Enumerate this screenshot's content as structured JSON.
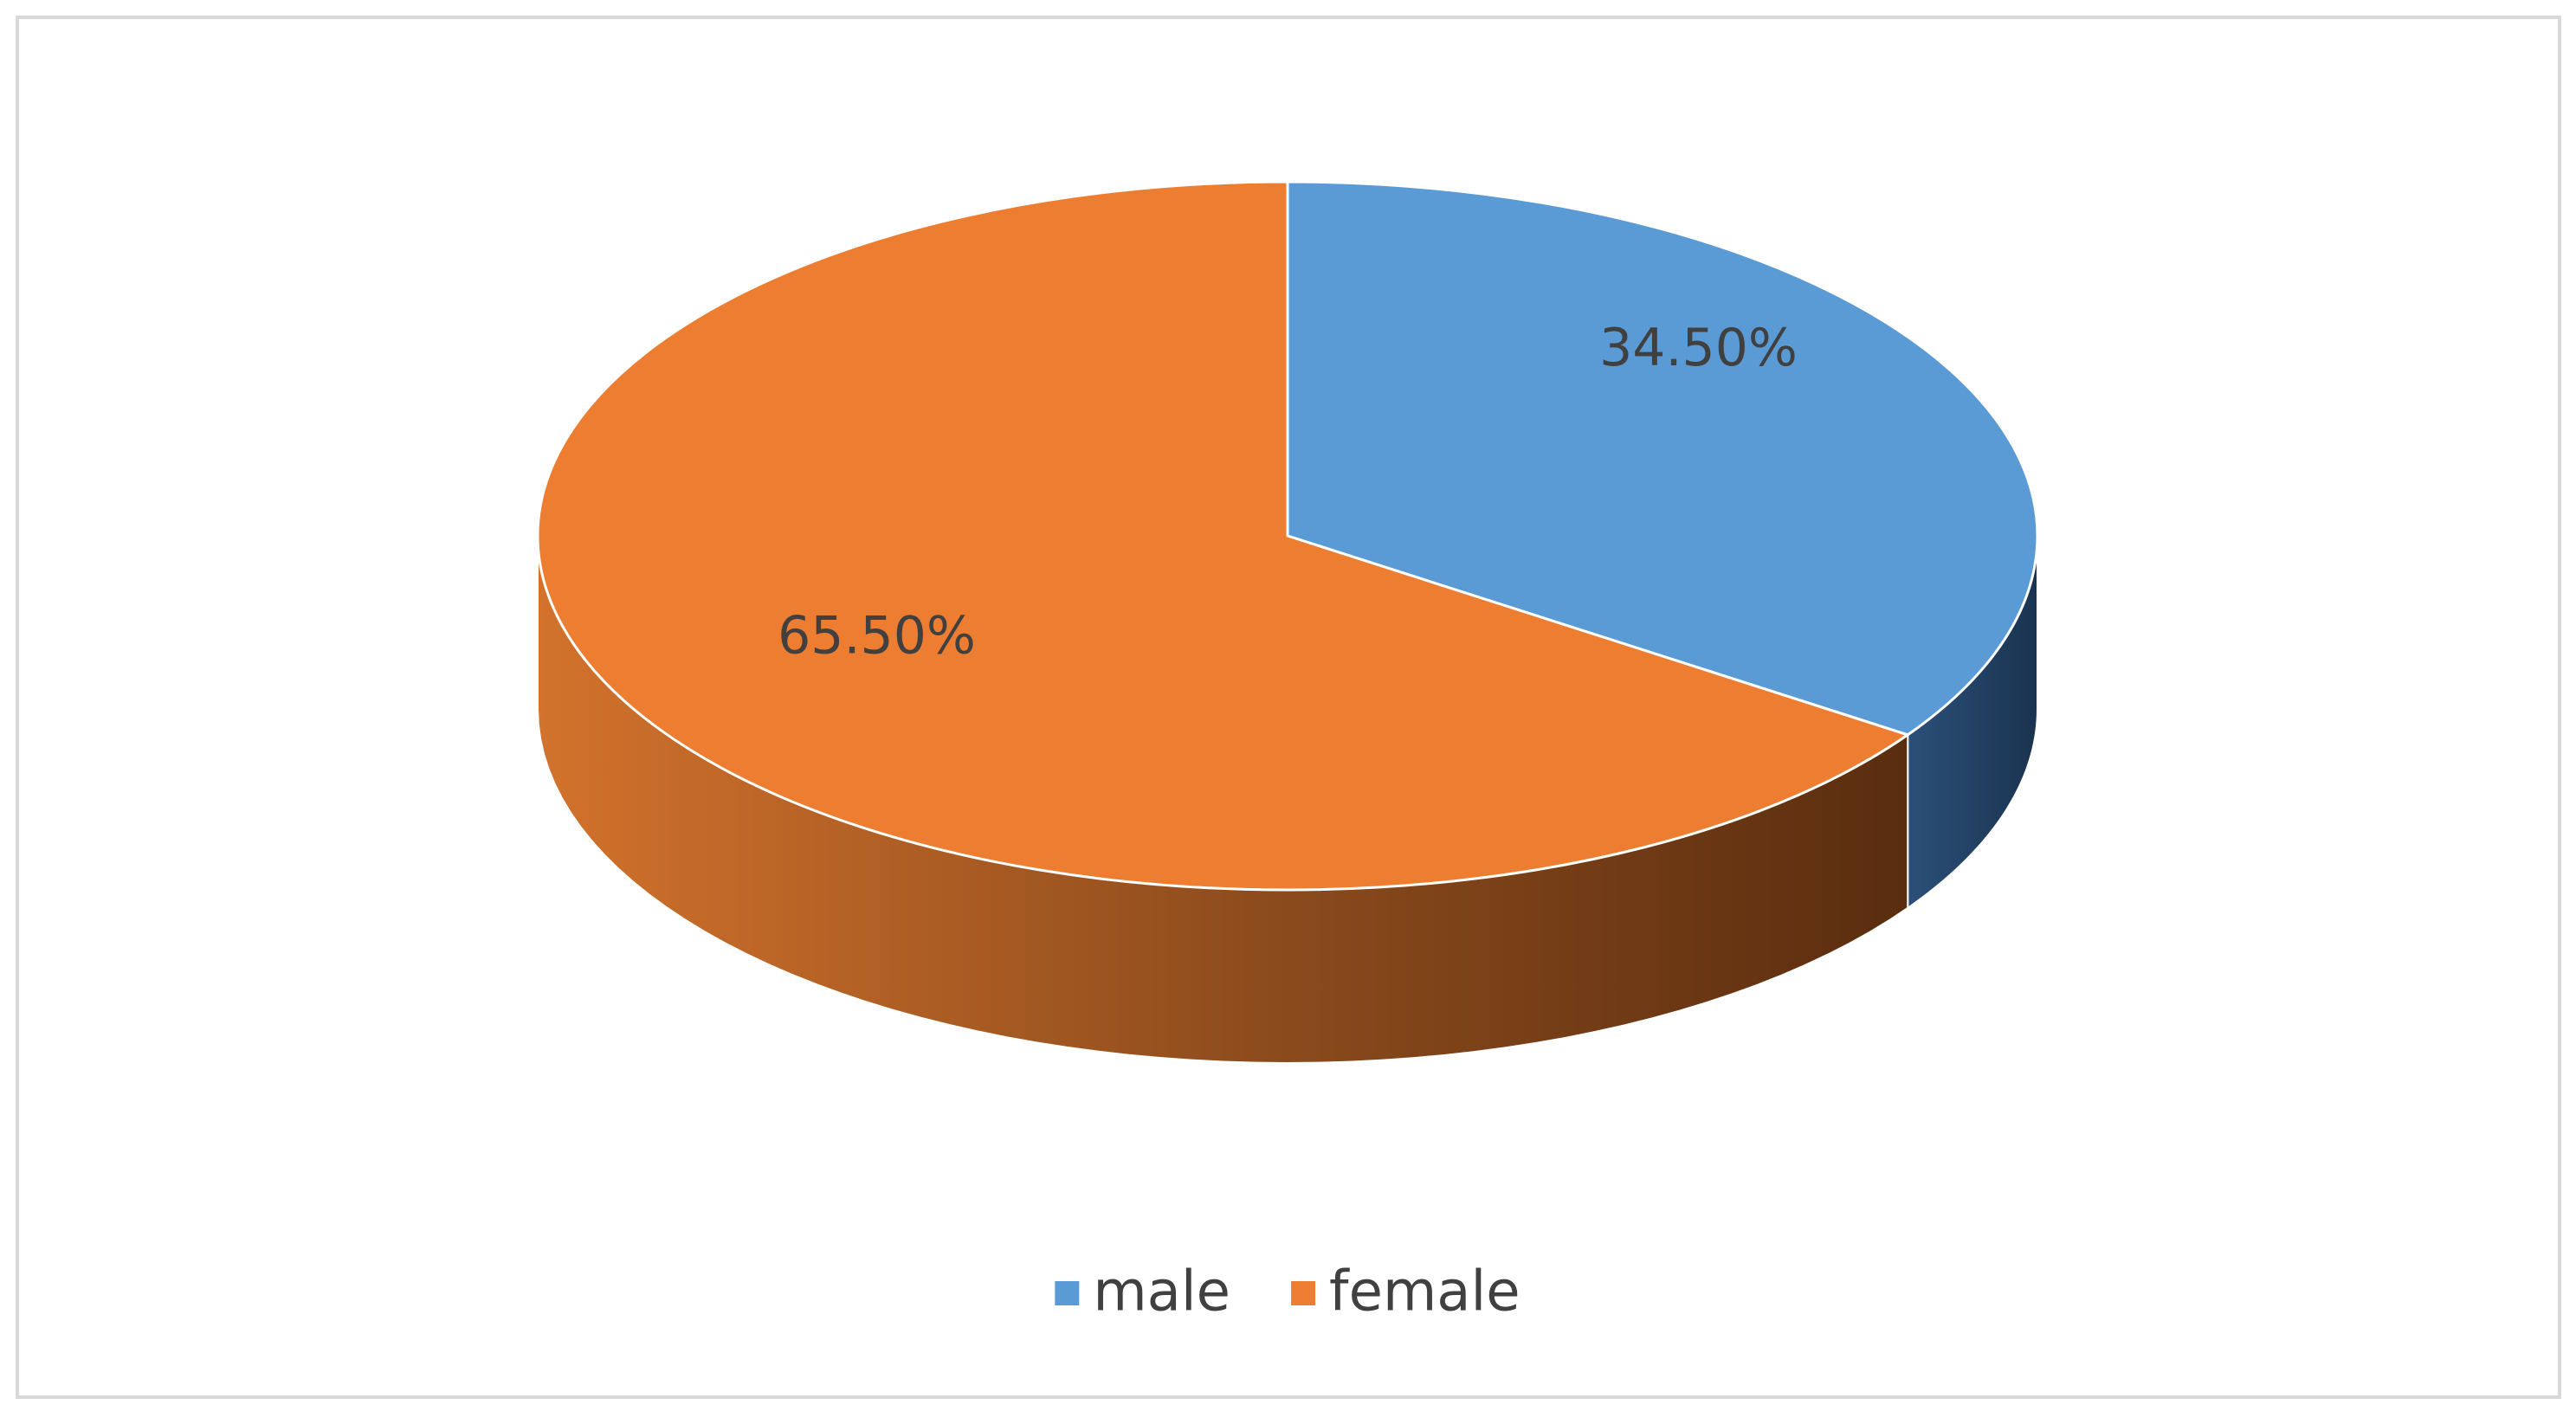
{
  "chart_data": {
    "type": "pie3d",
    "categories": [
      "male",
      "female"
    ],
    "values": [
      34.5,
      65.5
    ],
    "value_labels": [
      "34.50%",
      "65.50%"
    ],
    "colors": [
      "#5b9bd5",
      "#ed7d31"
    ],
    "legend": "bottom"
  }
}
